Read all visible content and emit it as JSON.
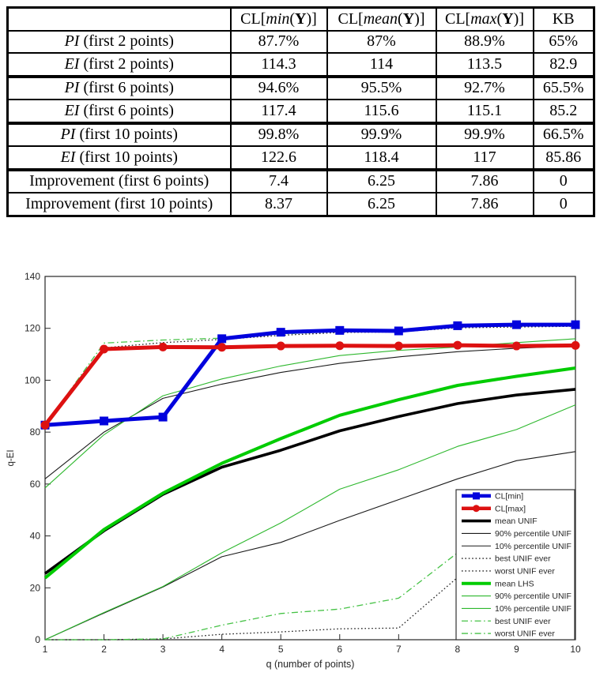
{
  "table": {
    "columns": [
      {
        "pre": "",
        "italic": "",
        "par": "",
        "bold": "",
        "post": ""
      },
      {
        "pre": "CL[",
        "italic": "min",
        "par": "(",
        "bold": "Y",
        "post": ")]"
      },
      {
        "pre": "CL[",
        "italic": "mean",
        "par": "(",
        "bold": "Y",
        "post": ")]"
      },
      {
        "pre": "CL[",
        "italic": "max",
        "par": "(",
        "bold": "Y",
        "post": ")]"
      },
      {
        "pre": "KB",
        "italic": "",
        "par": "",
        "bold": "",
        "post": ""
      }
    ],
    "rows": [
      {
        "italic": "PI",
        "rest": " (first 2 points)",
        "values": [
          "87.7%",
          "87%",
          "88.9%",
          "65%"
        ],
        "thick_bottom": false
      },
      {
        "italic": "EI",
        "rest": " (first 2 points)",
        "values": [
          "114.3",
          "114",
          "113.5",
          "82.9"
        ],
        "thick_bottom": true
      },
      {
        "italic": "PI",
        "rest": " (first 6 points)",
        "values": [
          "94.6%",
          "95.5%",
          "92.7%",
          "65.5%"
        ],
        "thick_bottom": false
      },
      {
        "italic": "EI",
        "rest": " (first 6 points)",
        "values": [
          "117.4",
          "115.6",
          "115.1",
          "85.2"
        ],
        "thick_bottom": true
      },
      {
        "italic": "PI",
        "rest": " (first 10 points)",
        "values": [
          "99.8%",
          "99.9%",
          "99.9%",
          "66.5%"
        ],
        "thick_bottom": false
      },
      {
        "italic": "EI",
        "rest": " (first 10 points)",
        "values": [
          "122.6",
          "118.4",
          "117",
          "85.86"
        ],
        "thick_bottom": true
      },
      {
        "italic": "",
        "rest": "Improvement (first 6 points)",
        "values": [
          "7.4",
          "6.25",
          "7.86",
          "0"
        ],
        "thick_bottom": false
      },
      {
        "italic": "",
        "rest": "Improvement (first 10 points)",
        "values": [
          "8.37",
          "6.25",
          "7.86",
          "0"
        ],
        "thick_bottom": false
      }
    ]
  },
  "chart_data": {
    "type": "line",
    "title": "",
    "xlabel": "q (number of points)",
    "ylabel": "q-EI",
    "xlim": [
      1,
      10
    ],
    "ylim": [
      0,
      140
    ],
    "xticks": [
      1,
      2,
      3,
      4,
      5,
      6,
      7,
      8,
      9,
      10
    ],
    "yticks": [
      0,
      20,
      40,
      60,
      80,
      100,
      120,
      140
    ],
    "grid": false,
    "legend_position": "bottom-right",
    "x": [
      1,
      2,
      3,
      4,
      5,
      6,
      7,
      8,
      9,
      10
    ],
    "series": [
      {
        "id": "cl-min",
        "label": "CL[min]",
        "color": "#0202dd",
        "width": 5,
        "dash": "solid",
        "marker": "square",
        "values": [
          82.7,
          84.3,
          85.8,
          116,
          118.5,
          119.2,
          119,
          121,
          121.4,
          121.4
        ]
      },
      {
        "id": "cl-max",
        "label": "CL[max]",
        "color": "#dd1111",
        "width": 5,
        "dash": "solid",
        "marker": "circle",
        "values": [
          82.7,
          112,
          112.8,
          112.7,
          113.2,
          113.3,
          113.2,
          113.5,
          113.2,
          113.4
        ]
      },
      {
        "id": "mean-unif",
        "label": "mean UNIF",
        "color": "#000000",
        "width": 3.6,
        "dash": "solid",
        "marker": "none",
        "values": [
          25.5,
          42,
          56,
          66.5,
          73,
          80.5,
          86,
          91,
          94.3,
          96.5
        ]
      },
      {
        "id": "p90-unif",
        "label": "90% percentile UNIF",
        "color": "#1a1a1a",
        "width": 1.1,
        "dash": "solid",
        "marker": "none",
        "values": [
          62,
          80,
          93,
          98.5,
          103,
          106.5,
          109,
          111,
          112.3,
          113.2
        ]
      },
      {
        "id": "p10-unif",
        "label": "10% percentile UNIF",
        "color": "#1a1a1a",
        "width": 1.1,
        "dash": "solid",
        "marker": "none",
        "values": [
          0,
          10.3,
          20.3,
          32,
          37.5,
          46,
          54,
          62,
          69,
          72.5
        ]
      },
      {
        "id": "best-unif",
        "label": "best UNIF ever",
        "color": "#222222",
        "width": 1.3,
        "dash": "dot",
        "marker": "none",
        "values": [
          82.7,
          112.5,
          114.5,
          115.7,
          117.3,
          118.4,
          118.6,
          120.2,
          120.5,
          120.8
        ]
      },
      {
        "id": "worst-unif",
        "label": "worst UNIF ever",
        "color": "#222222",
        "width": 1.3,
        "dash": "dot",
        "marker": "none",
        "values": [
          0,
          0,
          0.3,
          2.1,
          3,
          4.2,
          4.5,
          24,
          30,
          36
        ]
      },
      {
        "id": "mean-lhs",
        "label": "mean LHS",
        "color": "#00cc00",
        "width": 4,
        "dash": "solid",
        "marker": "none",
        "values": [
          23.8,
          42.5,
          56.5,
          68,
          77.5,
          86.5,
          92.5,
          98,
          101.5,
          104.7
        ]
      },
      {
        "id": "p90-lhs",
        "label": "90% percentile UNIF",
        "color": "#2eb82e",
        "width": 1.1,
        "dash": "solid",
        "marker": "none",
        "values": [
          58.5,
          79,
          94,
          100.5,
          105.5,
          109.5,
          111.5,
          112.8,
          114.5,
          116
        ]
      },
      {
        "id": "p10-lhs",
        "label": "10% percentile UNIF",
        "color": "#2eb82e",
        "width": 1.1,
        "dash": "solid",
        "marker": "none",
        "values": [
          0,
          10.5,
          20.5,
          33.5,
          45,
          58,
          65.5,
          74.5,
          81,
          90.5
        ]
      },
      {
        "id": "best-lhs",
        "label": "best UNIF ever",
        "color": "#46c246",
        "width": 1.3,
        "dash": "dashdot",
        "marker": "none",
        "values": [
          82.7,
          114.3,
          115.5,
          116.2,
          117.8,
          118.8,
          119.3,
          120.8,
          121.1,
          121.3
        ]
      },
      {
        "id": "worst-lhs",
        "label": "worst UNIF ever",
        "color": "#46c246",
        "width": 1.3,
        "dash": "dashdot",
        "marker": "none",
        "values": [
          0,
          0,
          0.3,
          5.6,
          10.1,
          11.8,
          16,
          33.5,
          35.5,
          36.5
        ]
      }
    ]
  }
}
